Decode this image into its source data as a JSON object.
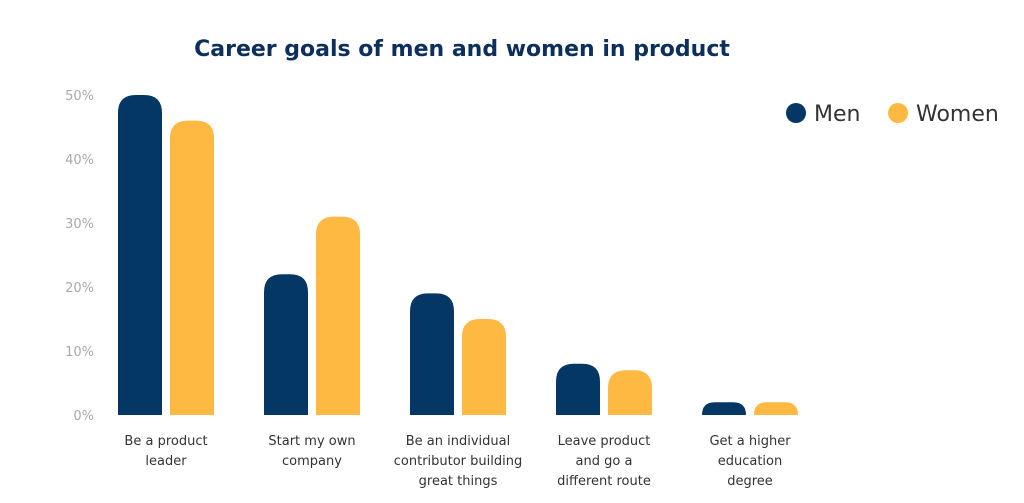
{
  "chart_data": {
    "type": "bar",
    "title": "Career goals of men and women in product",
    "xlabel": "",
    "ylabel": "",
    "ylim": [
      0,
      50
    ],
    "yticks": [
      "0%",
      "10%",
      "20%",
      "30%",
      "40%",
      "50%"
    ],
    "grid": false,
    "legend_position": "top-right",
    "categories": [
      [
        "Be a product",
        "leader"
      ],
      [
        "Start my own",
        "company"
      ],
      [
        "Be an individual",
        "contributor building",
        "great things"
      ],
      [
        "Leave product",
        "and go a",
        "different route"
      ],
      [
        "Get a higher",
        "education",
        "degree"
      ]
    ],
    "series": [
      {
        "name": "Men",
        "color": "#043764",
        "values": [
          50,
          22,
          19,
          8,
          2
        ]
      },
      {
        "name": "Women",
        "color": "#fdb942",
        "values": [
          46,
          31,
          15,
          7,
          2
        ]
      }
    ]
  }
}
